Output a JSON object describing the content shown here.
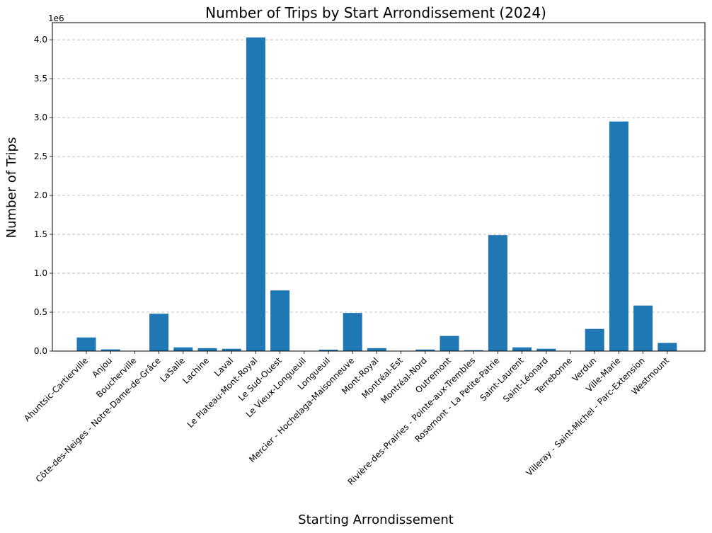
{
  "chart_data": {
    "type": "bar",
    "title": "Number of Trips by Start Arrondissement (2024)",
    "xlabel": "Starting Arrondissement",
    "ylabel": "Number of Trips",
    "y_offset_label": "1e6",
    "ylim": [
      0,
      4.22
    ],
    "y_ticks": [
      "0.0",
      "0.5",
      "1.0",
      "1.5",
      "2.0",
      "2.5",
      "3.0",
      "3.5",
      "4.0"
    ],
    "grid": "y-dashed",
    "bar_color": "#1f77b4",
    "categories": [
      "Ahuntsic-Cartierville",
      "Anjou",
      "Boucherville",
      "Côte-des-Neiges - Notre-Dame-de-Grâce",
      "LaSalle",
      "Lachine",
      "Laval",
      "Le Plateau-Mont-Royal",
      "Le Sud-Ouest",
      "Le Vieux-Longueuil",
      "Longueuil",
      "Mercier - Hochelaga-Maisonneuve",
      "Mont-Royal",
      "Montréal-Est",
      "Montréal-Nord",
      "Outremont",
      "Rivière-des-Prairies - Pointe-aux-Trembles",
      "Rosemont - La Petite-Patrie",
      "Saint-Laurent",
      "Saint-Léonard",
      "Terrebonne",
      "Verdun",
      "Ville-Marie",
      "Villeray - Saint-Michel - Parc-Extension",
      "Westmount"
    ],
    "values": [
      0.175,
      0.022,
      0.002,
      0.48,
      0.048,
      0.038,
      0.03,
      4.03,
      0.78,
      0.002,
      0.018,
      0.49,
      0.038,
      0.002,
      0.02,
      0.195,
      0.012,
      1.49,
      0.048,
      0.03,
      0.002,
      0.285,
      2.95,
      0.585,
      0.105
    ]
  }
}
